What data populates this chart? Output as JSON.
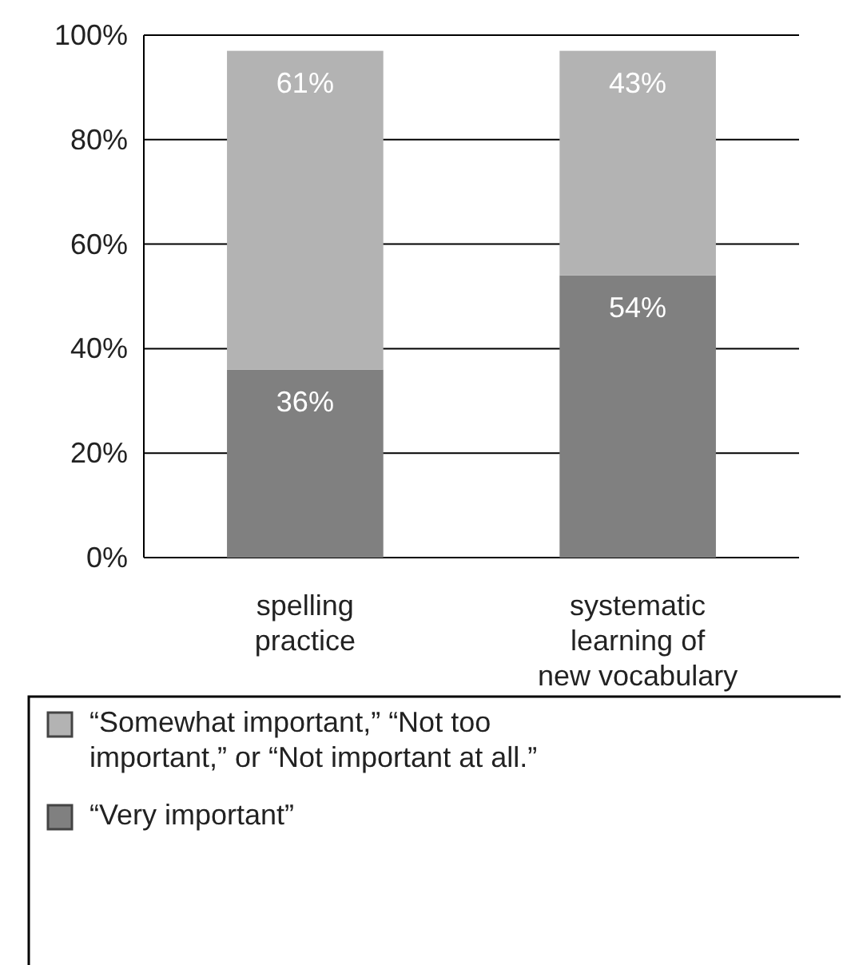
{
  "chart_data": {
    "type": "bar",
    "stacked": true,
    "categories": [
      "spelling\npractice",
      "systematic\nlearning of\nnew vocabulary"
    ],
    "series": [
      {
        "name": "“Very important”",
        "color": "#808080",
        "values": [
          36,
          54
        ],
        "value_labels": [
          "36%",
          "54%"
        ]
      },
      {
        "name": "“Somewhat important,” “Not too important,” or “Not important at all.”",
        "color": "#b3b3b3",
        "values": [
          61,
          43
        ],
        "value_labels": [
          "61%",
          "43%"
        ]
      }
    ],
    "ylim": [
      0,
      100
    ],
    "yticks": [
      {
        "value": 0,
        "label": "0%"
      },
      {
        "value": 20,
        "label": "20%"
      },
      {
        "value": 40,
        "label": "40%"
      },
      {
        "value": 60,
        "label": "60%"
      },
      {
        "value": 80,
        "label": "80%"
      },
      {
        "value": 100,
        "label": "100%"
      }
    ],
    "grid": "y",
    "legend": "bottom"
  }
}
